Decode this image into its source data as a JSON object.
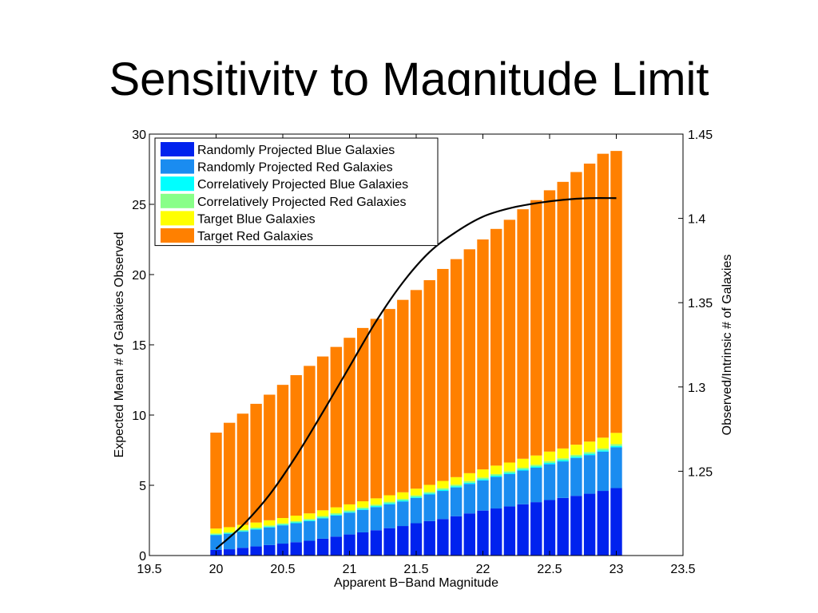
{
  "slide": {
    "title": "Sensitivity to Magnitude Limit"
  },
  "chart_data": {
    "type": "bar",
    "stacked": true,
    "xlabel": "Apparent B−Band Magnitude",
    "ylabel": "Expected Mean # of Galaxies Observed",
    "y2label": "Observed/Intrinsic # of Galaxies",
    "xlim": [
      19.5,
      23.5
    ],
    "ylim": [
      0,
      30
    ],
    "y2lim": [
      1.2,
      1.45
    ],
    "xticks": [
      "19.5",
      "20",
      "20.5",
      "21",
      "21.5",
      "22",
      "22.5",
      "23",
      "23.5"
    ],
    "yticks": [
      "0",
      "5",
      "10",
      "15",
      "20",
      "25",
      "30"
    ],
    "y2ticks": [
      "1.25",
      "1.3",
      "1.35",
      "1.4",
      "1.45"
    ],
    "legend_position": "top-left",
    "grid": false,
    "x": [
      20.0,
      20.1,
      20.2,
      20.3,
      20.4,
      20.5,
      20.6,
      20.7,
      20.8,
      20.9,
      21.0,
      21.1,
      21.2,
      21.3,
      21.4,
      21.5,
      21.6,
      21.7,
      21.8,
      21.9,
      22.0,
      22.1,
      22.2,
      22.3,
      22.4,
      22.5,
      22.6,
      22.7,
      22.8,
      22.9,
      23.0
    ],
    "series": [
      {
        "name": "Randomly Projected Blue Galaxies",
        "color": "#0022ee",
        "values": [
          0.4,
          0.45,
          0.55,
          0.65,
          0.75,
          0.85,
          0.95,
          1.05,
          1.2,
          1.35,
          1.5,
          1.65,
          1.8,
          1.95,
          2.1,
          2.3,
          2.45,
          2.6,
          2.8,
          3.0,
          3.2,
          3.35,
          3.5,
          3.65,
          3.8,
          3.95,
          4.1,
          4.25,
          4.4,
          4.6,
          4.8
        ]
      },
      {
        "name": "Randomly Projected Red Galaxies",
        "color": "#1a8cf0",
        "values": [
          1.05,
          1.1,
          1.15,
          1.2,
          1.25,
          1.3,
          1.35,
          1.4,
          1.45,
          1.5,
          1.55,
          1.6,
          1.65,
          1.7,
          1.75,
          1.8,
          1.9,
          2.0,
          2.05,
          2.1,
          2.15,
          2.25,
          2.3,
          2.4,
          2.45,
          2.55,
          2.6,
          2.7,
          2.75,
          2.8,
          2.9
        ]
      },
      {
        "name": "Correlatively Projected Blue Galaxies",
        "color": "#00ffff",
        "values": [
          0.04,
          0.04,
          0.05,
          0.05,
          0.05,
          0.05,
          0.06,
          0.06,
          0.06,
          0.06,
          0.06,
          0.07,
          0.07,
          0.07,
          0.07,
          0.07,
          0.07,
          0.08,
          0.08,
          0.08,
          0.08,
          0.08,
          0.08,
          0.08,
          0.09,
          0.09,
          0.09,
          0.09,
          0.09,
          0.09,
          0.1
        ]
      },
      {
        "name": "Correlatively Projected Red Galaxies",
        "color": "#88ff88",
        "values": [
          0.08,
          0.08,
          0.08,
          0.09,
          0.09,
          0.09,
          0.09,
          0.09,
          0.1,
          0.1,
          0.1,
          0.1,
          0.1,
          0.11,
          0.11,
          0.11,
          0.11,
          0.11,
          0.11,
          0.12,
          0.12,
          0.12,
          0.12,
          0.12,
          0.12,
          0.13,
          0.13,
          0.13,
          0.13,
          0.13,
          0.13
        ]
      },
      {
        "name": "Target Blue Galaxies",
        "color": "#ffff00",
        "values": [
          0.35,
          0.35,
          0.35,
          0.36,
          0.37,
          0.38,
          0.39,
          0.4,
          0.41,
          0.42,
          0.43,
          0.44,
          0.45,
          0.46,
          0.47,
          0.48,
          0.5,
          0.52,
          0.54,
          0.56,
          0.58,
          0.6,
          0.62,
          0.64,
          0.66,
          0.68,
          0.7,
          0.72,
          0.74,
          0.77,
          0.8
        ]
      },
      {
        "name": "Target Red Galaxies",
        "color": "#ff8000",
        "values": [
          6.83,
          7.43,
          7.92,
          8.45,
          8.94,
          9.48,
          10.0,
          10.5,
          10.95,
          11.42,
          11.86,
          12.34,
          12.78,
          13.26,
          13.7,
          14.14,
          14.57,
          15.09,
          15.52,
          15.94,
          16.37,
          16.85,
          17.28,
          17.76,
          18.18,
          18.6,
          18.98,
          19.41,
          19.79,
          20.21,
          20.07
        ]
      }
    ],
    "ratio_line": {
      "x": [
        20.0,
        20.2,
        20.4,
        20.6,
        20.8,
        21.0,
        21.2,
        21.4,
        21.6,
        21.8,
        22.0,
        22.2,
        22.4,
        22.6,
        22.8,
        23.0
      ],
      "y": [
        1.204,
        1.218,
        1.236,
        1.259,
        1.285,
        1.312,
        1.339,
        1.362,
        1.38,
        1.392,
        1.401,
        1.406,
        1.409,
        1.411,
        1.412,
        1.412
      ],
      "color": "#000000"
    }
  }
}
